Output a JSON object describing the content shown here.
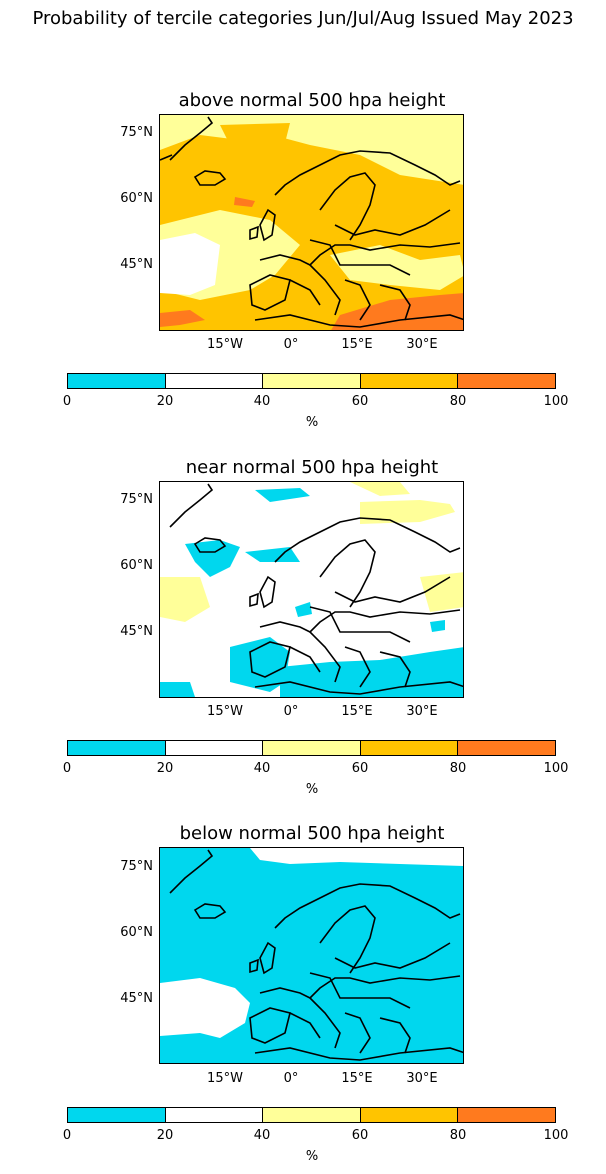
{
  "suptitle": "Probability of tercile categories Jun/Jul/Aug Issued May 2023",
  "panels": [
    {
      "title": "above normal 500 hpa height",
      "dominant": "#ffc400"
    },
    {
      "title": "near normal 500 hpa height",
      "dominant": "#ffffff"
    },
    {
      "title": "below normal 500 hpa height",
      "dominant": "#00d7ee"
    }
  ],
  "lat_labels": [
    "75°N",
    "60°N",
    "45°N"
  ],
  "lon_labels": [
    "15°W",
    "0°",
    "15°E",
    "30°E"
  ],
  "colorbar": {
    "ticks": [
      "0",
      "20",
      "40",
      "60",
      "80",
      "100"
    ],
    "unit": "%",
    "colors": [
      "#00d7ee",
      "#ffffff",
      "#ffff99",
      "#ffc400",
      "#ff7a1e"
    ]
  }
}
